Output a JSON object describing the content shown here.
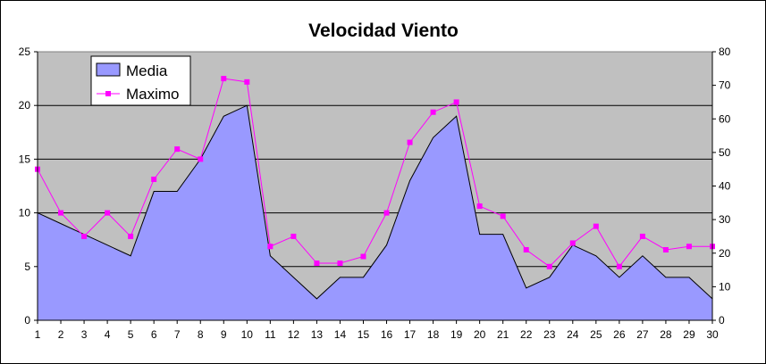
{
  "chart_data": {
    "type": "area+line",
    "title": "Velocidad Viento",
    "x": [
      1,
      2,
      3,
      4,
      5,
      6,
      7,
      8,
      9,
      10,
      11,
      12,
      13,
      14,
      15,
      16,
      17,
      18,
      19,
      20,
      21,
      22,
      23,
      24,
      25,
      26,
      27,
      28,
      29,
      30
    ],
    "series": [
      {
        "name": "Media",
        "type": "area",
        "axis": "left",
        "color": "#9999ff",
        "values": [
          10,
          9,
          8,
          7,
          6,
          12,
          12,
          15,
          19,
          20,
          6,
          4,
          2,
          4,
          4,
          7,
          13,
          17,
          19,
          8,
          8,
          3,
          4,
          7,
          6,
          4,
          6,
          4,
          4,
          2
        ]
      },
      {
        "name": "Maximo",
        "type": "line",
        "axis": "right",
        "color": "#ff00ff",
        "values": [
          45,
          32,
          25,
          32,
          25,
          42,
          51,
          48,
          72,
          71,
          22,
          25,
          17,
          17,
          19,
          32,
          53,
          62,
          65,
          34,
          31,
          21,
          16,
          23,
          28,
          16,
          25,
          21,
          22,
          22
        ]
      }
    ],
    "y_left": {
      "ylim": [
        0,
        25
      ],
      "ticks": [
        0,
        5,
        10,
        15,
        20,
        25
      ]
    },
    "y_right": {
      "ylim": [
        0,
        80
      ],
      "ticks": [
        0,
        10,
        20,
        30,
        40,
        50,
        60,
        70,
        80
      ]
    },
    "plot_background": "#c0c0c0",
    "grid": true,
    "legend_position": "top-left"
  }
}
